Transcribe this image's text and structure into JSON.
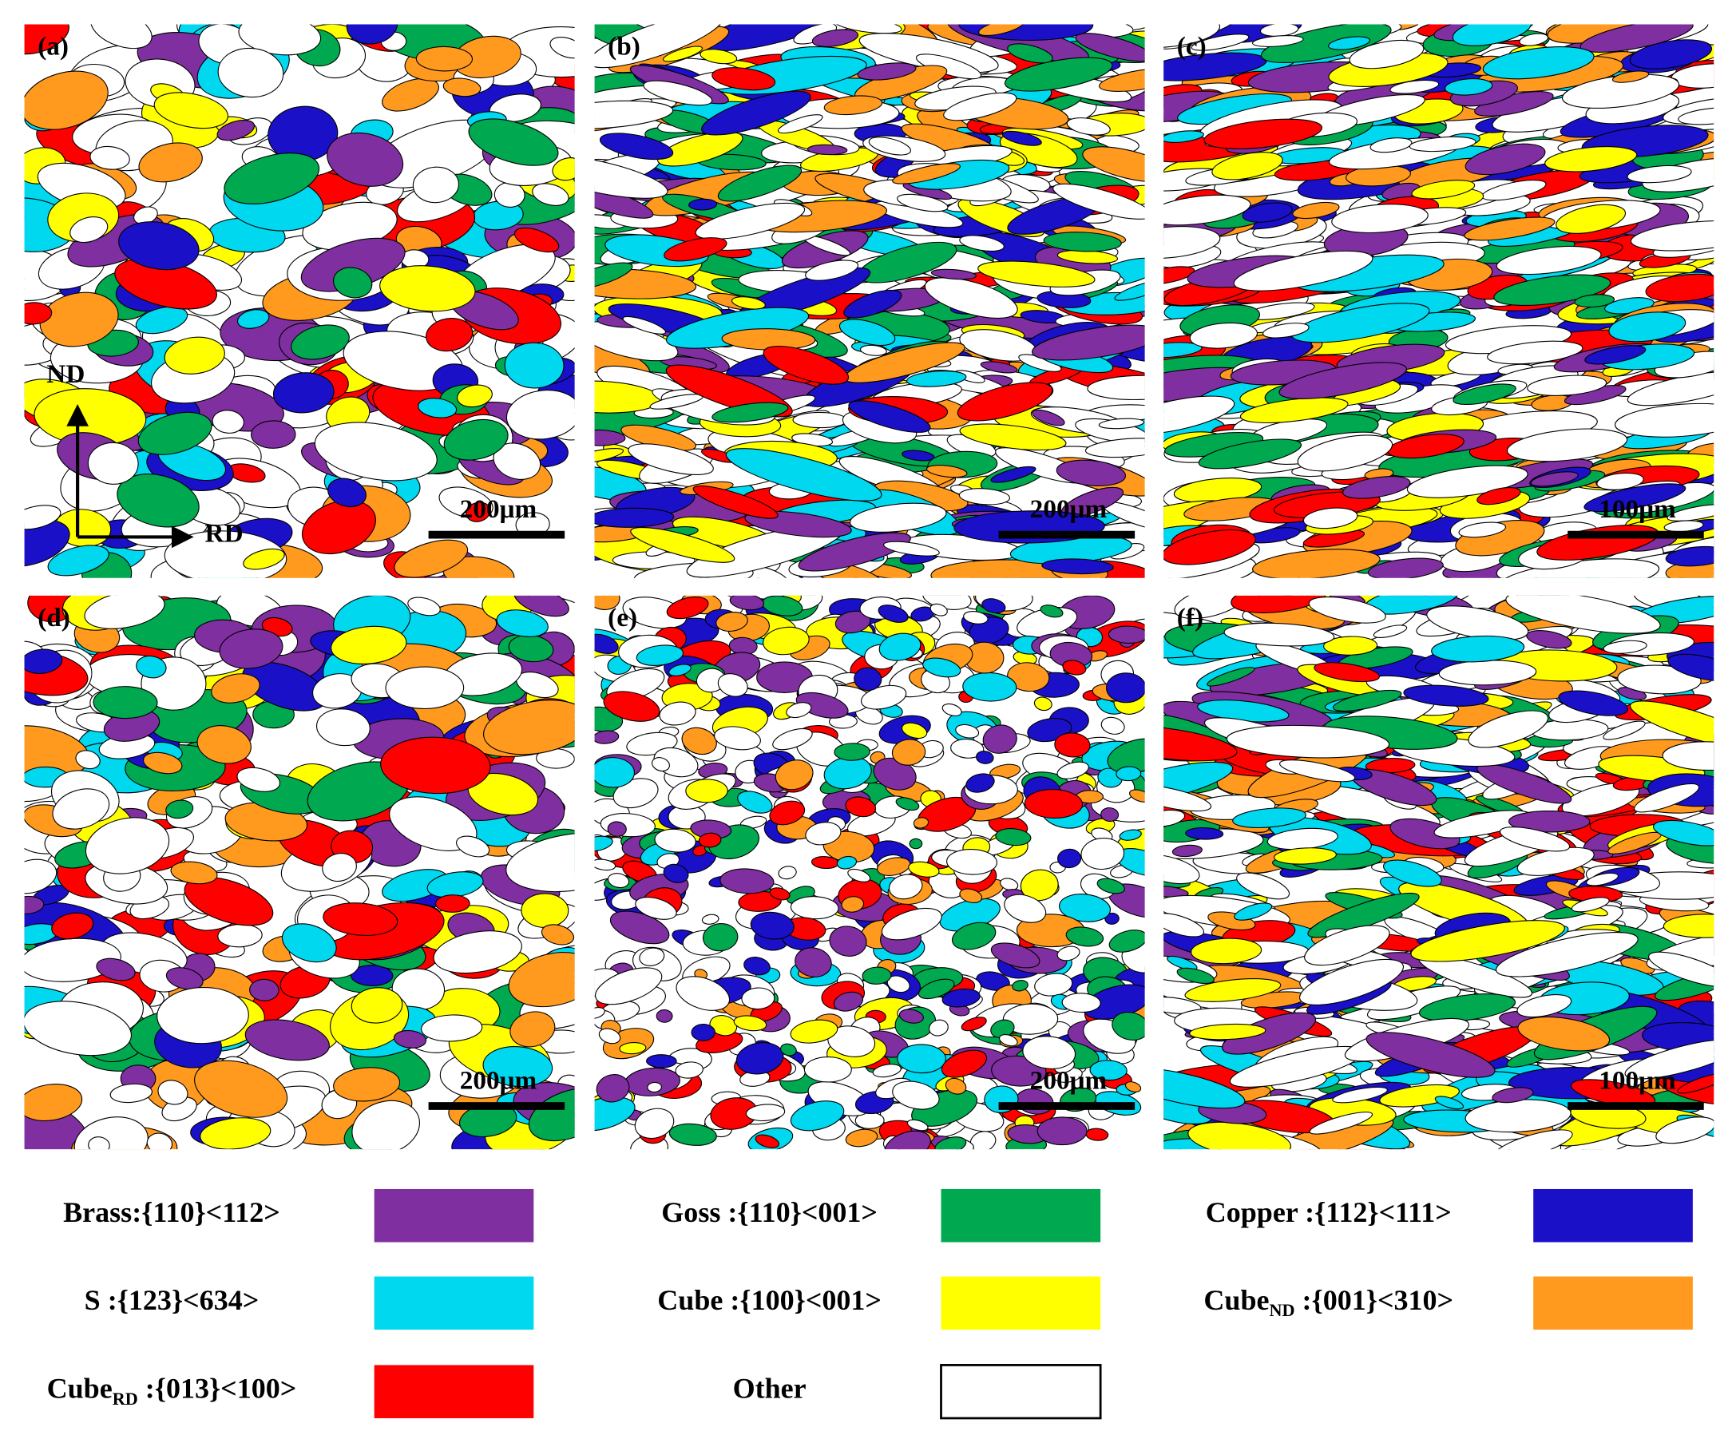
{
  "panels": [
    {
      "label": "(a)",
      "scale": "200μm"
    },
    {
      "label": "(b)",
      "scale": "200μm"
    },
    {
      "label": "(c)",
      "scale": "100μm"
    },
    {
      "label": "(d)",
      "scale": "200μm"
    },
    {
      "label": "(e)",
      "scale": "200μm"
    },
    {
      "label": "(f)",
      "scale": "100μm"
    }
  ],
  "axes": {
    "nd": "ND",
    "rd": "RD"
  },
  "legend": [
    {
      "name": "Brass:{110}<112>",
      "color": "#7f2f9f"
    },
    {
      "name": "Goss :{110}<001>",
      "color": "#00a94f"
    },
    {
      "name": "Copper :{112}<111>",
      "color": "#1a10c8"
    },
    {
      "name": "S :{123}<634>",
      "color": "#00d8f0"
    },
    {
      "name": "Cube :{100}<001>",
      "color": "#ffff00"
    },
    {
      "name": "Cube",
      "sub": "ND",
      "tail": " :{001}<310>",
      "color": "#ff9a1e"
    },
    {
      "name": "Cube",
      "sub": "RD",
      "tail": " :{013}<100>",
      "color": "#ff0000"
    },
    {
      "name": "Other",
      "color": "#ffffff"
    }
  ]
}
